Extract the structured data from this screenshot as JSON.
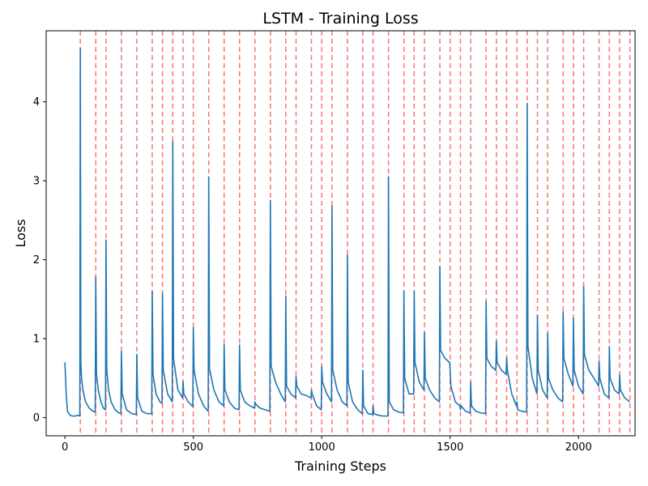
{
  "chart_data": {
    "type": "line",
    "title": "LSTM - Training Loss",
    "xlabel": "Training Steps",
    "ylabel": "Loss",
    "xlim": [
      -73,
      2220
    ],
    "ylim": [
      -0.23,
      4.9
    ],
    "xticks": [
      0,
      500,
      1000,
      1500,
      2000
    ],
    "yticks": [
      0,
      1,
      2,
      3,
      4
    ],
    "grid": false,
    "colors": {
      "line": "#1f77b4",
      "vlines": "#ff0000"
    },
    "vlines": [
      60,
      120,
      160,
      220,
      280,
      340,
      380,
      420,
      460,
      500,
      560,
      620,
      680,
      740,
      800,
      860,
      900,
      960,
      1000,
      1040,
      1100,
      1160,
      1200,
      1260,
      1320,
      1360,
      1400,
      1460,
      1500,
      1540,
      1580,
      1640,
      1680,
      1720,
      1760,
      1800,
      1840,
      1880,
      1940,
      1980,
      2020,
      2080,
      2120,
      2160,
      2200
    ],
    "series": [
      {
        "x": [
          0,
          5,
          10,
          20,
          30,
          40,
          50,
          58,
          60,
          62,
          65,
          70,
          80,
          95,
          110,
          118,
          120,
          123,
          130,
          140,
          150,
          158,
          160,
          163,
          170,
          180,
          195,
          210,
          218,
          220,
          223,
          240,
          260,
          278,
          280,
          283,
          300,
          320,
          338,
          340,
          343,
          355,
          370,
          378,
          380,
          383,
          400,
          418,
          420,
          423,
          440,
          458,
          460,
          463,
          480,
          498,
          500,
          503,
          520,
          540,
          558,
          560,
          563,
          580,
          600,
          618,
          620,
          623,
          640,
          660,
          678,
          680,
          683,
          700,
          720,
          738,
          740,
          743,
          760,
          780,
          798,
          800,
          803,
          820,
          840,
          858,
          860,
          863,
          880,
          898,
          900,
          903,
          920,
          940,
          958,
          960,
          963,
          980,
          998,
          1000,
          1003,
          1020,
          1038,
          1040,
          1043,
          1060,
          1080,
          1098,
          1100,
          1103,
          1120,
          1140,
          1158,
          1160,
          1163,
          1180,
          1198,
          1200,
          1203,
          1220,
          1240,
          1258,
          1260,
          1263,
          1280,
          1300,
          1318,
          1320,
          1323,
          1340,
          1358,
          1360,
          1363,
          1380,
          1398,
          1400,
          1403,
          1420,
          1440,
          1458,
          1460,
          1463,
          1480,
          1498,
          1500,
          1503,
          1520,
          1538,
          1540,
          1543,
          1560,
          1578,
          1580,
          1583,
          1600,
          1620,
          1638,
          1640,
          1643,
          1660,
          1678,
          1680,
          1683,
          1700,
          1718,
          1720,
          1723,
          1740,
          1758,
          1760,
          1763,
          1780,
          1798,
          1800,
          1803,
          1820,
          1838,
          1840,
          1843,
          1860,
          1878,
          1880,
          1883,
          1900,
          1920,
          1938,
          1940,
          1943,
          1960,
          1978,
          1980,
          1983,
          2000,
          2018,
          2020,
          2023,
          2040,
          2060,
          2078,
          2080,
          2083,
          2100,
          2118,
          2120,
          2123,
          2140,
          2158,
          2160,
          2163,
          2180,
          2200
        ],
        "y": [
          0.7,
          0.3,
          0.08,
          0.03,
          0.02,
          0.02,
          0.03,
          0.02,
          4.68,
          0.7,
          0.5,
          0.35,
          0.2,
          0.12,
          0.08,
          0.07,
          1.78,
          0.55,
          0.35,
          0.2,
          0.12,
          0.1,
          2.25,
          0.6,
          0.35,
          0.2,
          0.1,
          0.06,
          0.05,
          0.84,
          0.3,
          0.1,
          0.05,
          0.04,
          0.8,
          0.25,
          0.08,
          0.05,
          0.05,
          1.6,
          0.55,
          0.3,
          0.2,
          0.18,
          1.57,
          0.6,
          0.3,
          0.2,
          3.5,
          0.75,
          0.35,
          0.25,
          0.46,
          0.3,
          0.2,
          0.14,
          1.14,
          0.6,
          0.3,
          0.15,
          0.08,
          3.05,
          0.62,
          0.35,
          0.2,
          0.15,
          0.93,
          0.35,
          0.2,
          0.12,
          0.1,
          0.92,
          0.35,
          0.2,
          0.15,
          0.12,
          0.2,
          0.17,
          0.12,
          0.1,
          0.08,
          2.75,
          0.65,
          0.45,
          0.3,
          0.2,
          1.54,
          0.4,
          0.3,
          0.25,
          0.52,
          0.4,
          0.3,
          0.28,
          0.25,
          0.35,
          0.3,
          0.15,
          0.1,
          0.65,
          0.45,
          0.3,
          0.2,
          2.68,
          0.6,
          0.35,
          0.2,
          0.15,
          2.06,
          0.45,
          0.2,
          0.1,
          0.05,
          0.6,
          0.15,
          0.05,
          0.04,
          0.15,
          0.05,
          0.03,
          0.02,
          0.02,
          3.05,
          0.2,
          0.1,
          0.07,
          0.06,
          1.6,
          0.5,
          0.3,
          0.3,
          1.6,
          0.7,
          0.45,
          0.35,
          1.08,
          0.5,
          0.35,
          0.25,
          0.2,
          1.91,
          0.85,
          0.75,
          0.7,
          0.6,
          0.4,
          0.2,
          0.15,
          0.1,
          0.15,
          0.08,
          0.06,
          0.45,
          0.15,
          0.08,
          0.06,
          0.05,
          1.47,
          0.75,
          0.65,
          0.6,
          0.97,
          0.7,
          0.6,
          0.55,
          0.76,
          0.6,
          0.3,
          0.15,
          0.2,
          0.1,
          0.08,
          0.07,
          3.98,
          0.9,
          0.5,
          0.3,
          1.3,
          0.6,
          0.35,
          0.25,
          1.07,
          0.5,
          0.35,
          0.25,
          0.2,
          1.34,
          0.75,
          0.55,
          0.4,
          1.26,
          0.6,
          0.4,
          0.3,
          1.66,
          0.8,
          0.6,
          0.5,
          0.4,
          0.72,
          0.5,
          0.3,
          0.25,
          0.9,
          0.5,
          0.35,
          0.3,
          0.54,
          0.35,
          0.25,
          0.2
        ]
      }
    ]
  }
}
